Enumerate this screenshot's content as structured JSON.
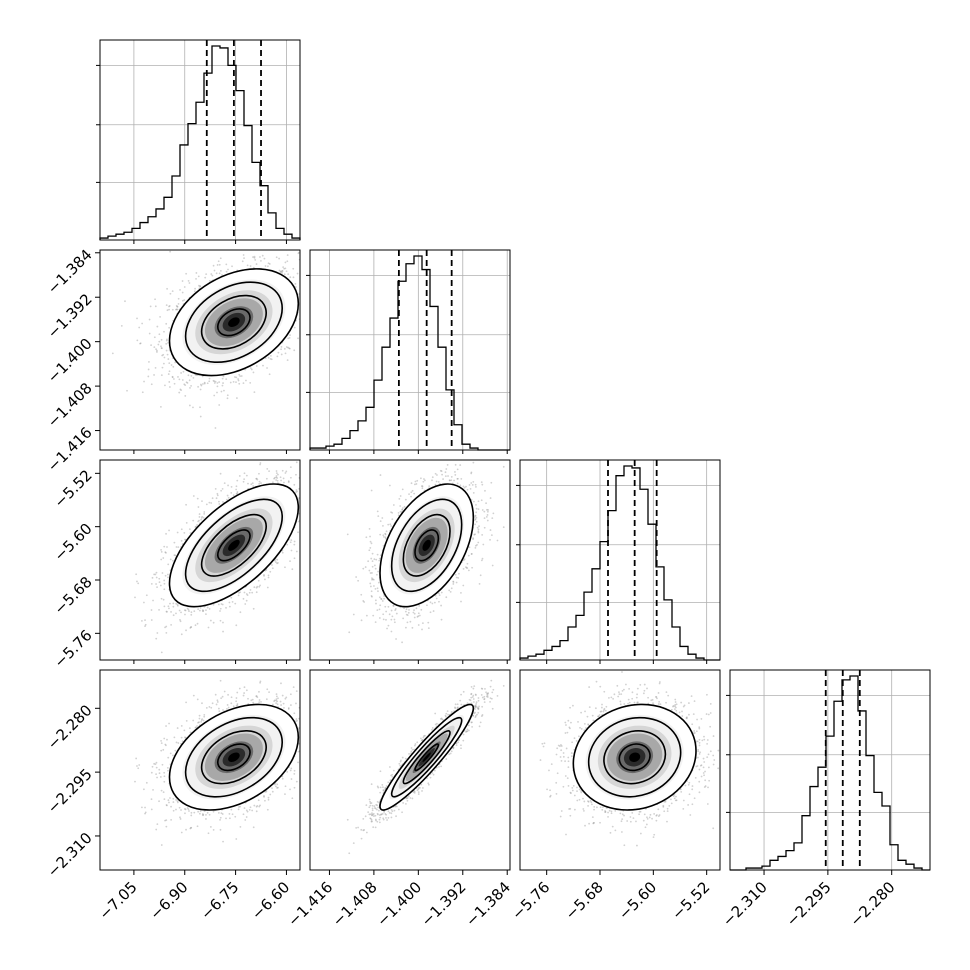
{
  "chart_data": {
    "type": "corner",
    "grid": true,
    "parameters": [
      {
        "range": [
          -7.15,
          -6.56
        ],
        "quantiles": [
          -6.835,
          -6.755,
          -6.675
        ],
        "ticks": [
          -7.05,
          -6.9,
          -6.75,
          -6.6
        ],
        "tick_labels": [
          "−7.05",
          "−6.90",
          "−6.75",
          "−6.60"
        ],
        "hist_edges_range": [
          -7.15,
          -6.56
        ],
        "hist_counts": [
          1,
          2,
          3,
          4,
          6,
          9,
          12,
          16,
          22,
          33,
          49,
          60,
          71,
          86,
          100,
          99,
          90,
          77,
          59,
          40,
          28,
          14,
          6,
          3,
          1
        ],
        "hist_yticks": [
          0.33,
          0.66,
          1.0
        ]
      },
      {
        "range": [
          -1.4195,
          -1.3835
        ],
        "quantiles": [
          -1.4035,
          -1.3985,
          -1.394
        ],
        "ticks": [
          -1.416,
          -1.408,
          -1.4,
          -1.392,
          -1.384
        ],
        "tick_labels": [
          "−1.416",
          "−1.408",
          "−1.400",
          "−1.392",
          "−1.384"
        ],
        "hist_edges_range": [
          -1.4195,
          -1.3835
        ],
        "hist_counts": [
          1,
          1,
          2,
          3,
          6,
          10,
          15,
          22,
          36,
          53,
          68,
          87,
          96,
          100,
          93,
          74,
          53,
          31,
          13,
          3,
          1,
          0,
          0,
          0,
          0
        ],
        "hist_yticks": [
          0.33,
          0.66,
          1.0
        ]
      },
      {
        "range": [
          -5.8,
          -5.5
        ],
        "quantiles": [
          -5.668,
          -5.628,
          -5.595
        ],
        "ticks": [
          -5.76,
          -5.68,
          -5.6,
          -5.52
        ],
        "tick_labels": [
          "−5.76",
          "−5.68",
          "−5.60",
          "−5.52"
        ],
        "hist_edges_range": [
          -5.8,
          -5.5
        ],
        "hist_counts": [
          1,
          2,
          3,
          5,
          7,
          10,
          17,
          23,
          35,
          47,
          61,
          77,
          95,
          100,
          99,
          88,
          70,
          48,
          31,
          17,
          7,
          3,
          1,
          0,
          0
        ],
        "hist_yticks": [
          0.33,
          0.66,
          1.0
        ]
      },
      {
        "range": [
          -2.318,
          -2.271
        ],
        "quantiles": [
          -2.2955,
          -2.2915,
          -2.2875
        ],
        "ticks": [
          -2.31,
          -2.295,
          -2.28
        ],
        "tick_labels": [
          "−2.310",
          "−2.295",
          "−2.280"
        ],
        "hist_edges_range": [
          -2.318,
          -2.271
        ],
        "hist_counts": [
          0,
          0,
          1,
          1,
          2,
          5,
          7,
          10,
          14,
          28,
          43,
          53,
          69,
          87,
          98,
          100,
          82,
          59,
          40,
          33,
          13,
          5,
          3,
          1,
          0
        ],
        "hist_yticks": [
          0.33,
          0.66,
          1.0
        ]
      }
    ],
    "pairs": [
      {
        "i": 1,
        "j": 0,
        "center": [
          -6.755,
          -1.3965
        ],
        "sd": [
          0.095,
          0.0048
        ],
        "corr": 0.35
      },
      {
        "i": 2,
        "j": 0,
        "center": [
          -6.755,
          -5.628
        ],
        "sd": [
          0.095,
          0.046
        ],
        "corr": 0.62
      },
      {
        "i": 2,
        "j": 1,
        "center": [
          -1.3985,
          -5.628
        ],
        "sd": [
          0.0042,
          0.046
        ],
        "corr": 0.45
      },
      {
        "i": 3,
        "j": 0,
        "center": [
          -6.755,
          -2.2915
        ],
        "sd": [
          0.095,
          0.0062
        ],
        "corr": 0.38
      },
      {
        "i": 3,
        "j": 1,
        "center": [
          -1.3985,
          -2.2915
        ],
        "sd": [
          0.0042,
          0.0062
        ],
        "corr": 0.93
      },
      {
        "i": 3,
        "j": 2,
        "center": [
          -5.628,
          -2.2915
        ],
        "sd": [
          0.046,
          0.0062
        ],
        "corr": 0.12
      }
    ],
    "contour_levels_sigma": [
      0.5,
      1.0,
      1.5,
      2.0
    ]
  }
}
